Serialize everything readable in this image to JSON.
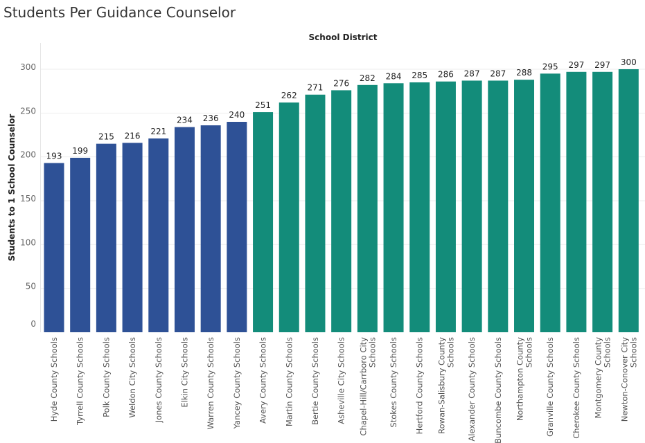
{
  "page": {
    "title": "Students Per Guidance Counselor"
  },
  "colors": {
    "group_low": "#2e5196",
    "group_high": "#138c7a"
  },
  "chart_data": {
    "type": "bar",
    "title": "Students Per Guidance Counselor",
    "column_header": "School District",
    "xlabel": "",
    "ylabel": "Students to 1 School Counselor",
    "ylim": [
      0,
      330
    ],
    "yticks": [
      0,
      50,
      100,
      150,
      200,
      250,
      300
    ],
    "grid": true,
    "categories": [
      "Hyde County Schools",
      "Tyrrell County Schools",
      "Polk County Schools",
      "Weldon City Schools",
      "Jones County Schools",
      "Elkin City Schools",
      "Warren County Schools",
      "Yancey County Schools",
      "Avery County Schools",
      "Martin County Schools",
      "Bertie County Schools",
      "Asheville City Schools",
      "Chapel-Hill/Carrboro City Schools",
      "Stokes County Schools",
      "Hertford County Schools",
      "Rowan-Salisbury County Schools",
      "Alexander County Schools",
      "Buncombe County Schools",
      "Northampton County Schools",
      "Granville County Schools",
      "Cherokee County Schools",
      "Montgomery County Schools",
      "Newton-Conover City Schools"
    ],
    "category_label_lines": [
      [
        "Hyde County Schools"
      ],
      [
        "Tyrrell County Schools"
      ],
      [
        "Polk County Schools"
      ],
      [
        "Weldon City Schools"
      ],
      [
        "Jones County Schools"
      ],
      [
        "Elkin City Schools"
      ],
      [
        "Warren County Schools"
      ],
      [
        "Yancey County Schools"
      ],
      [
        "Avery County Schools"
      ],
      [
        "Martin County Schools"
      ],
      [
        "Bertie County Schools"
      ],
      [
        "Asheville City Schools"
      ],
      [
        "Chapel-Hill/Carrboro City",
        "Schools"
      ],
      [
        "Stokes County Schools"
      ],
      [
        "Hertford County Schools"
      ],
      [
        "Rowan-Salisbury County",
        "Schools"
      ],
      [
        "Alexander County Schools"
      ],
      [
        "Buncombe County Schools"
      ],
      [
        "Northampton County",
        "Schools"
      ],
      [
        "Granville County Schools"
      ],
      [
        "Cherokee County Schools"
      ],
      [
        "Montgomery County",
        "Schools"
      ],
      [
        "Newton-Conover City",
        "Schools"
      ]
    ],
    "values": [
      193,
      199,
      215,
      216,
      221,
      234,
      236,
      240,
      251,
      262,
      271,
      276,
      282,
      284,
      285,
      286,
      287,
      287,
      288,
      295,
      297,
      297,
      300
    ],
    "groups": [
      "low",
      "low",
      "low",
      "low",
      "low",
      "low",
      "low",
      "low",
      "high",
      "high",
      "high",
      "high",
      "high",
      "high",
      "high",
      "high",
      "high",
      "high",
      "high",
      "high",
      "high",
      "high",
      "high"
    ]
  }
}
